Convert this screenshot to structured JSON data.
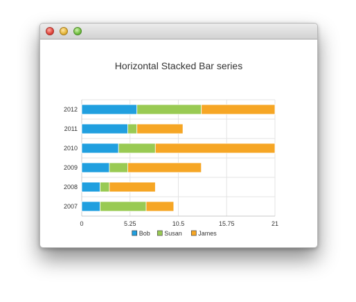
{
  "window": {
    "controls": [
      "close-icon",
      "minimize-icon",
      "zoom-icon"
    ]
  },
  "chart_data": {
    "type": "bar",
    "orientation": "horizontal",
    "stacked": true,
    "title": "Horizontal Stacked Bar series",
    "categories": [
      "2007",
      "2008",
      "2009",
      "2010",
      "2011",
      "2012"
    ],
    "series": [
      {
        "name": "Bob",
        "color": "#209fdf",
        "values": [
          2,
          2,
          3,
          4,
          5,
          6
        ]
      },
      {
        "name": "Susan",
        "color": "#99ca53",
        "values": [
          5,
          1,
          2,
          4,
          1,
          7
        ]
      },
      {
        "name": "James",
        "color": "#f6a625",
        "values": [
          3,
          5,
          8,
          13,
          5,
          8
        ]
      }
    ],
    "xlim": [
      0,
      21
    ],
    "x_ticks": [
      "0",
      "5.25",
      "10.5",
      "15.75",
      "21"
    ],
    "grid": true,
    "legend_position": "bottom"
  }
}
